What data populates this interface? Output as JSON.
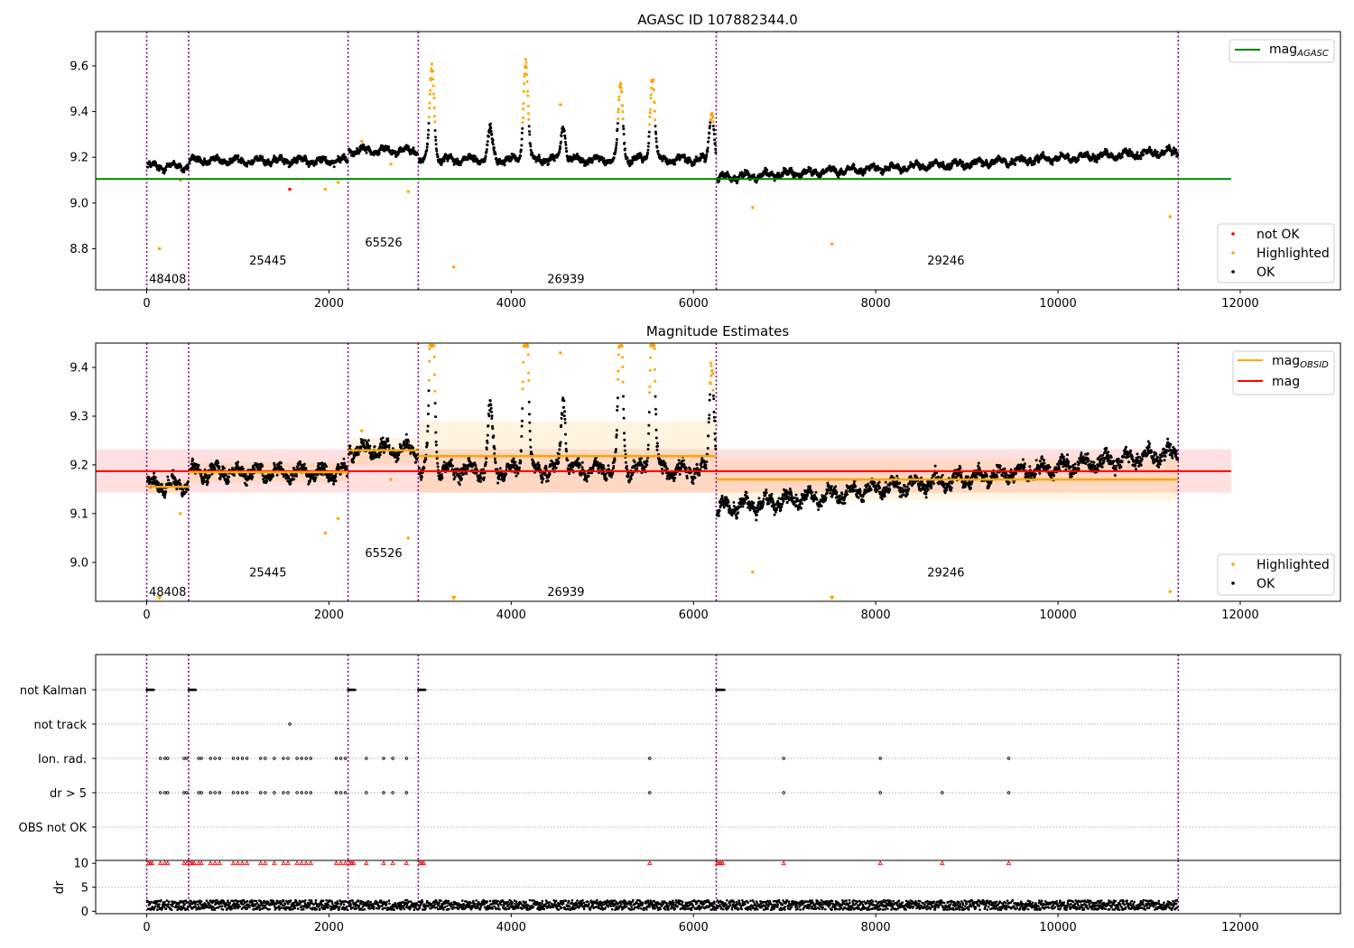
{
  "chart_data": [
    {
      "panel": "top",
      "type": "scatter",
      "title": "AGASC ID 107882344.0",
      "xlabel": "",
      "ylabel": "",
      "xlim": [
        -560,
        13100
      ],
      "ylim": [
        8.62,
        9.75
      ],
      "x_ticks": [
        0,
        2000,
        4000,
        6000,
        8000,
        10000,
        12000
      ],
      "x_tick_labels": [
        "0",
        "2000",
        "4000",
        "6000",
        "8000",
        "10000",
        "12000"
      ],
      "y_ticks": [
        8.8,
        9.0,
        9.2,
        9.4,
        9.6
      ],
      "y_tick_labels": [
        "8.8",
        "9.0",
        "9.2",
        "9.4",
        "9.6"
      ],
      "obsid_boundaries": [
        0,
        460,
        2210,
        2980,
        6250,
        11320
      ],
      "obsid_labels": [
        {
          "text": "48408",
          "x": 230,
          "y": 8.67
        },
        {
          "text": "25445",
          "x": 1330,
          "y": 8.75
        },
        {
          "text": "65526",
          "x": 2600,
          "y": 8.83
        },
        {
          "text": "26939",
          "x": 4600,
          "y": 8.67
        },
        {
          "text": "29246",
          "x": 8770,
          "y": 8.75
        }
      ],
      "reference_lines": [
        {
          "name": "mag_AGASC",
          "y": 9.105,
          "x_range": [
            -560,
            11900
          ],
          "color": "#008000"
        }
      ],
      "segments": [
        {
          "x": [
            0,
            460
          ],
          "base": 9.16
        },
        {
          "x": [
            460,
            2210
          ],
          "base": 9.185
        },
        {
          "x": [
            2210,
            2980
          ],
          "base": 9.23
        },
        {
          "x": [
            2980,
            6250
          ],
          "base": 9.19,
          "spikes": [
            [
              3130,
              9.6
            ],
            [
              3770,
              9.33
            ],
            [
              4160,
              9.62
            ],
            [
              4570,
              9.33
            ],
            [
              5200,
              9.52
            ],
            [
              5550,
              9.55
            ],
            [
              6200,
              9.4
            ]
          ]
        },
        {
          "x": [
            6250,
            11320
          ],
          "base_start": 9.11,
          "base_end": 9.225
        }
      ],
      "legends": [
        {
          "position": "upper-right",
          "entries": [
            {
              "label": "mag",
              "subscript": "AGASC",
              "marker": "line",
              "color": "#008000"
            }
          ]
        },
        {
          "position": "lower-right",
          "entries": [
            {
              "label": "not OK",
              "marker": "dot",
              "color": "#ff0000"
            },
            {
              "label": "Highlighted",
              "marker": "dot",
              "color": "#ffa500"
            },
            {
              "label": "OK",
              "marker": "dot",
              "color": "#000000"
            }
          ]
        }
      ],
      "outliers_highlighted": [
        [
          140,
          8.8
        ],
        [
          370,
          9.1
        ],
        [
          2870,
          9.05
        ],
        [
          3370,
          8.72
        ],
        [
          6650,
          8.98
        ],
        [
          7520,
          8.82
        ],
        [
          11230,
          8.94
        ],
        [
          2360,
          9.27
        ],
        [
          2680,
          9.17
        ],
        [
          1960,
          9.06
        ],
        [
          2100,
          9.09
        ],
        [
          4540,
          9.43
        ]
      ],
      "outliers_not_ok": [
        [
          1570,
          9.06
        ]
      ]
    },
    {
      "panel": "middle",
      "type": "scatter",
      "title": "Magnitude Estimates",
      "xlabel": "",
      "ylabel": "",
      "xlim": [
        -560,
        13100
      ],
      "ylim": [
        8.92,
        9.45
      ],
      "x_ticks": [
        0,
        2000,
        4000,
        6000,
        8000,
        10000,
        12000
      ],
      "x_tick_labels": [
        "0",
        "2000",
        "4000",
        "6000",
        "8000",
        "10000",
        "12000"
      ],
      "y_ticks": [
        9.0,
        9.1,
        9.2,
        9.3,
        9.4
      ],
      "y_tick_labels": [
        "9.0",
        "9.1",
        "9.2",
        "9.3",
        "9.4"
      ],
      "obsid_boundaries": [
        0,
        460,
        2210,
        2980,
        6250,
        11320
      ],
      "obsid_labels": [
        {
          "text": "48408",
          "x": 230,
          "y": 8.94
        },
        {
          "text": "25445",
          "x": 1330,
          "y": 8.98
        },
        {
          "text": "65526",
          "x": 2600,
          "y": 9.02
        },
        {
          "text": "26939",
          "x": 4600,
          "y": 8.94
        },
        {
          "text": "29246",
          "x": 8770,
          "y": 8.98
        }
      ],
      "mag": {
        "value": 9.187,
        "band": [
          9.143,
          9.232
        ],
        "x_range": [
          -560,
          11900
        ],
        "color": "#ff0000"
      },
      "mag_obsid": [
        {
          "x": [
            0,
            460
          ],
          "value": 9.155,
          "band": [
            9.14,
            9.17
          ]
        },
        {
          "x": [
            460,
            2210
          ],
          "value": 9.185,
          "band": [
            9.165,
            9.205
          ]
        },
        {
          "x": [
            2210,
            2980
          ],
          "value": 9.23,
          "band": [
            9.2,
            9.255
          ]
        },
        {
          "x": [
            2980,
            6250
          ],
          "value": 9.218,
          "band": [
            9.143,
            9.29
          ]
        },
        {
          "x": [
            6250,
            11320
          ],
          "value": 9.17,
          "band": [
            9.128,
            9.212
          ]
        }
      ],
      "legends": [
        {
          "position": "upper-right",
          "entries": [
            {
              "label": "mag",
              "subscript": "OBSID",
              "marker": "line",
              "color": "#ffa500"
            },
            {
              "label": "mag",
              "subscript": "",
              "marker": "line",
              "color": "#ff0000"
            }
          ]
        },
        {
          "position": "lower-right",
          "entries": [
            {
              "label": "Highlighted",
              "marker": "dot",
              "color": "#ffa500"
            },
            {
              "label": "OK",
              "marker": "dot",
              "color": "#000000"
            }
          ]
        }
      ]
    },
    {
      "panel": "bottom-flags",
      "type": "scatter",
      "xlim": [
        -560,
        13100
      ],
      "categories": [
        "not Kalman",
        "not track",
        "Ion. rad.",
        "dr > 5",
        "OBS not OK"
      ],
      "flags": {
        "not Kalman": [
          [
            0,
            80
          ],
          [
            460,
            540
          ],
          [
            2210,
            2290
          ],
          [
            2980,
            3060
          ],
          [
            6250,
            6340
          ]
        ],
        "not track": [
          1570
        ],
        "Ion. rad.": [
          150,
          200,
          230,
          410,
          440,
          570,
          600,
          700,
          750,
          800,
          950,
          1000,
          1050,
          1100,
          1250,
          1300,
          1400,
          1500,
          1550,
          1650,
          1700,
          1750,
          1800,
          2080,
          2130,
          2180,
          2410,
          2600,
          2700,
          2850,
          5520,
          6990,
          8050,
          9460
        ],
        "dr > 5": [
          150,
          200,
          230,
          410,
          440,
          570,
          600,
          700,
          750,
          800,
          950,
          1000,
          1050,
          1100,
          1250,
          1300,
          1400,
          1500,
          1550,
          1650,
          1700,
          1750,
          1800,
          2080,
          2130,
          2180,
          2410,
          2600,
          2700,
          2850,
          5520,
          6990,
          8050,
          8730,
          9460
        ],
        "OBS not OK": []
      }
    },
    {
      "panel": "bottom-dr",
      "type": "scatter",
      "ylabel": "dr",
      "xlim": [
        -560,
        13100
      ],
      "ylim": [
        -0.5,
        10.6
      ],
      "x_ticks": [
        0,
        2000,
        4000,
        6000,
        8000,
        10000,
        12000
      ],
      "x_tick_labels": [
        "0",
        "2000",
        "4000",
        "6000",
        "8000",
        "10000",
        "12000"
      ],
      "y_ticks": [
        0,
        5,
        10
      ],
      "y_tick_labels": [
        "0",
        "5",
        "10"
      ],
      "dr_clipped_at": 10,
      "dr_typical_range": [
        0.3,
        2.3
      ]
    }
  ]
}
